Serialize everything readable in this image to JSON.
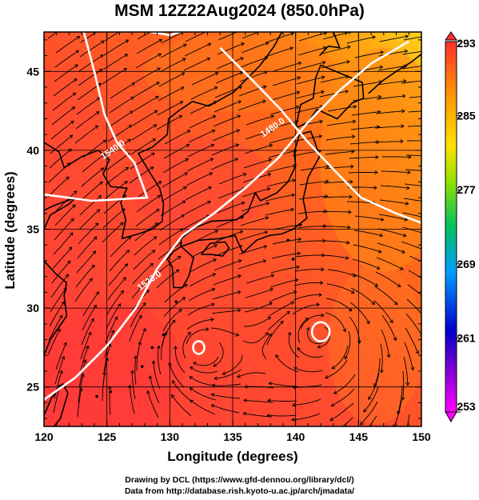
{
  "figure": {
    "title": "MSM 12Z22Aug2024 (850.0hPa)",
    "credits": [
      "Drawing by DCL (https://www.gfd-dennou.org/library/dcl/)",
      "Data from http://database.rish.kyoto-u.ac.jp/arch/jmadata/"
    ]
  },
  "chart_data": {
    "type": "heatmap",
    "title": "MSM 12Z22Aug2024 (850.0hPa)",
    "xlabel": "Longitude (degrees)",
    "ylabel": "Latitude  (degrees)",
    "xlim": [
      120,
      150
    ],
    "ylim": [
      22.5,
      47.5
    ],
    "xticks": [
      120,
      125,
      130,
      135,
      140,
      145,
      150
    ],
    "yticks": [
      25,
      30,
      35,
      40,
      45
    ],
    "grid": true,
    "colorbar": {
      "range": [
        253,
        293
      ],
      "ticks": [
        253,
        261,
        269,
        277,
        285,
        293
      ],
      "colors": [
        "#ff00ff",
        "#0000cc",
        "#00a0ff",
        "#00c060",
        "#90e000",
        "#ffe000",
        "#ff9900",
        "#ff3030"
      ]
    },
    "contours": [
      {
        "label": "1480.0",
        "lon": 138.3,
        "lat": 41.3
      },
      {
        "label": "1520.0",
        "lon": 128.5,
        "lat": 31.6
      },
      {
        "label": "1540.0",
        "lon": 125.6,
        "lat": 39.9
      }
    ],
    "highs": [
      {
        "lon": 142.0,
        "lat": 28.5
      },
      {
        "lon": 132.3,
        "lat": 27.5
      }
    ],
    "colors": {
      "field_main": "#ff4d2e",
      "field_warm": "#ff6a1a",
      "field_south": "#ff3b3b",
      "field_northeast": "#ffd21a",
      "contour": "#ffffff",
      "streamline": "#000000"
    }
  }
}
